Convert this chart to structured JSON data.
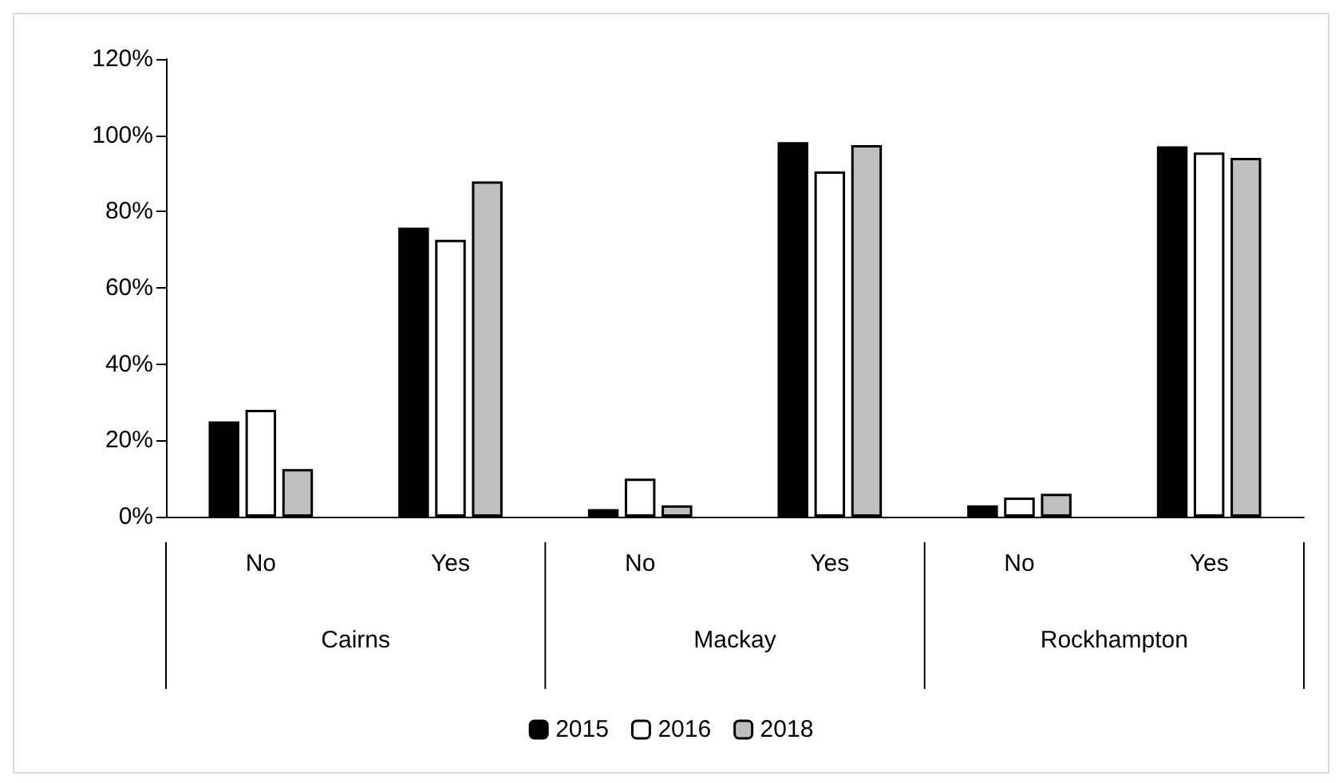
{
  "chart_data": {
    "type": "bar",
    "categories": [
      "No",
      "Yes",
      "No",
      "Yes",
      "No",
      "Yes"
    ],
    "annotations": [
      "Cairns",
      "Mackay",
      "Rockhampton"
    ],
    "series": [
      {
        "name": "2015",
        "color": "#000000",
        "values": [
          25,
          75.8,
          2,
          98.2,
          3,
          97.1
        ]
      },
      {
        "name": "2016",
        "color": "#ffffff",
        "values": [
          28,
          72.6,
          10,
          90.5,
          5,
          95.5
        ]
      },
      {
        "name": "2018",
        "color": "#bfbfbf",
        "values": [
          12.5,
          87.9,
          3,
          97.4,
          6,
          94.1
        ]
      }
    ],
    "ylim": [
      0,
      120
    ],
    "yticks": [
      {
        "value": 0,
        "label": "0%"
      },
      {
        "value": 20,
        "label": "20%"
      },
      {
        "value": 40,
        "label": "40%"
      },
      {
        "value": 60,
        "label": "60%"
      },
      {
        "value": 80,
        "label": "80%"
      },
      {
        "value": 100,
        "label": "100%"
      },
      {
        "value": 120,
        "label": "120%"
      }
    ],
    "grid": false,
    "legend": "bottom"
  }
}
